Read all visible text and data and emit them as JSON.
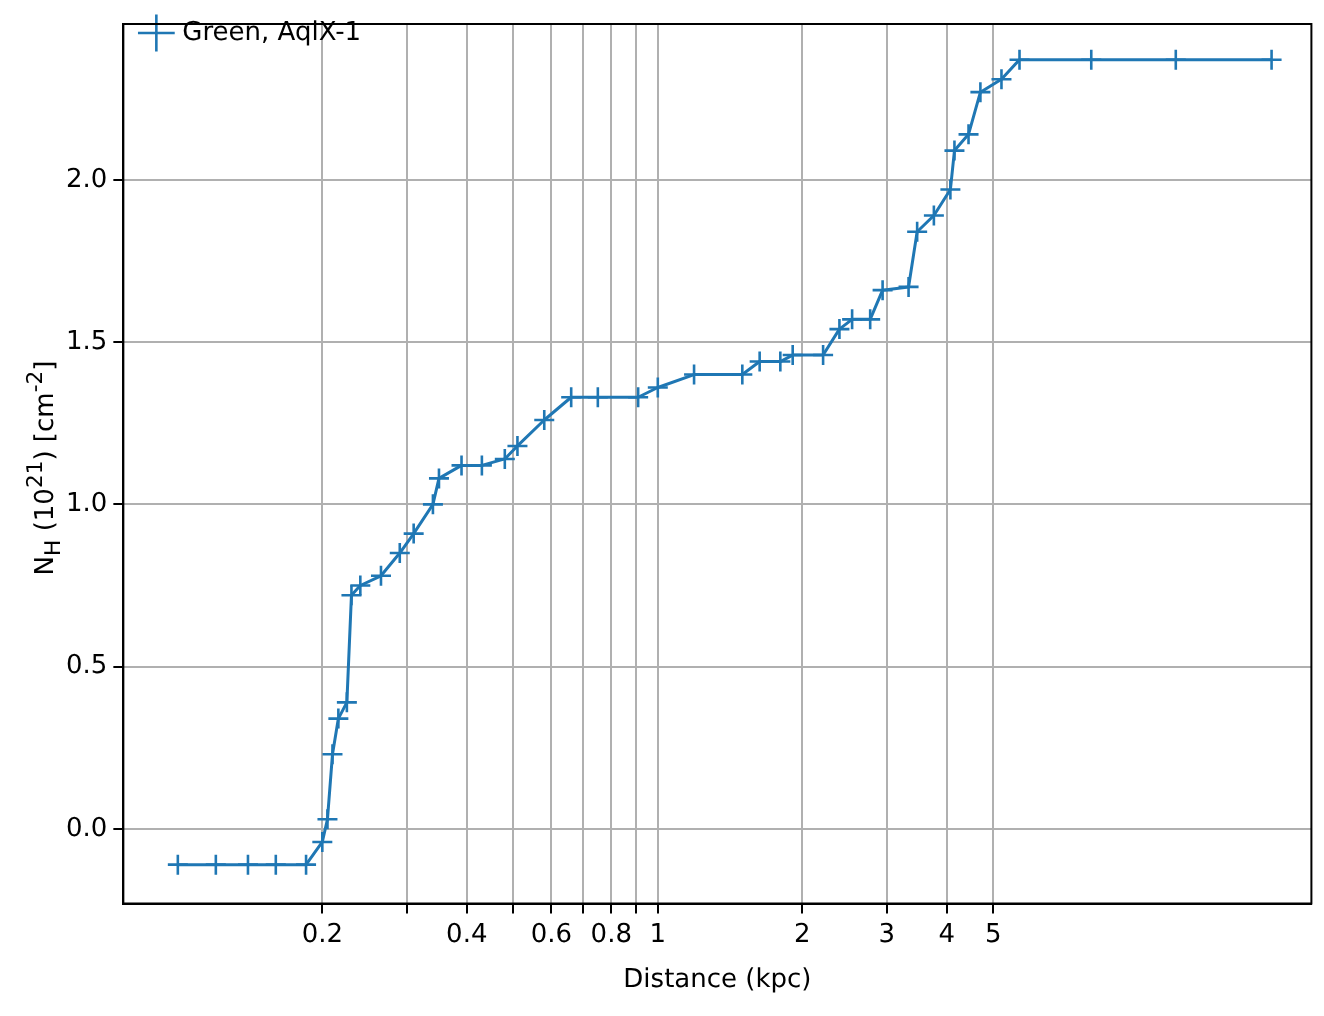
{
  "chart_data": {
    "type": "line",
    "xlabel": "Distance (kpc)",
    "ylabel": "N$_{H}$ (10$^{21}$) [cm$^{-2}$]",
    "log": "x",
    "grid": true,
    "legend": "top left",
    "marker": "cross",
    "line_style": "solid",
    "xlim": [
      0.077,
      23
    ],
    "ylim": [
      -0.23,
      2.48
    ],
    "xticks": [
      {
        "value": 0.2,
        "label": "0.2"
      },
      {
        "value": 0.3,
        "label": null
      },
      {
        "value": 0.4,
        "label": "0.4"
      },
      {
        "value": 0.5,
        "label": null
      },
      {
        "value": 0.6,
        "label": "0.6"
      },
      {
        "value": 0.7,
        "label": null
      },
      {
        "value": 0.8,
        "label": "0.8"
      },
      {
        "value": 0.9,
        "label": null
      },
      1,
      2,
      3,
      4,
      5
    ],
    "yticks": [
      {
        "value": 0,
        "label": "0.0"
      },
      0.5,
      {
        "value": 1,
        "label": "1.0"
      },
      1.5,
      {
        "value": 2,
        "label": "2.0"
      }
    ],
    "series": [
      {
        "name": "Green, AqlX-1",
        "color": "#1f77b4",
        "x": [
          0.1,
          0.12,
          0.14,
          0.16,
          0.185,
          0.2,
          0.205,
          0.21,
          0.216,
          0.225,
          0.23,
          0.24,
          0.265,
          0.29,
          0.31,
          0.34,
          0.35,
          0.39,
          0.43,
          0.48,
          0.51,
          0.58,
          0.66,
          0.75,
          0.91,
          1.0,
          1.19,
          1.5,
          1.63,
          1.8,
          1.91,
          2.21,
          2.39,
          2.54,
          2.77,
          2.94,
          3.33,
          3.47,
          3.76,
          4.07,
          4.15,
          4.44,
          4.7,
          5.2,
          5.67,
          8,
          12,
          19
        ],
        "values": [
          -0.11,
          -0.11,
          -0.11,
          -0.11,
          -0.11,
          -0.04,
          0.03,
          0.23,
          0.34,
          0.39,
          0.72,
          0.75,
          0.78,
          0.85,
          0.91,
          1.0,
          1.08,
          1.12,
          1.12,
          1.14,
          1.18,
          1.26,
          1.33,
          1.33,
          1.33,
          1.36,
          1.4,
          1.4,
          1.44,
          1.44,
          1.46,
          1.46,
          1.54,
          1.57,
          1.57,
          1.66,
          1.67,
          1.84,
          1.89,
          1.97,
          2.09,
          2.14,
          2.27,
          2.31,
          2.37,
          2.37,
          2.37,
          2.37
        ]
      }
    ]
  }
}
